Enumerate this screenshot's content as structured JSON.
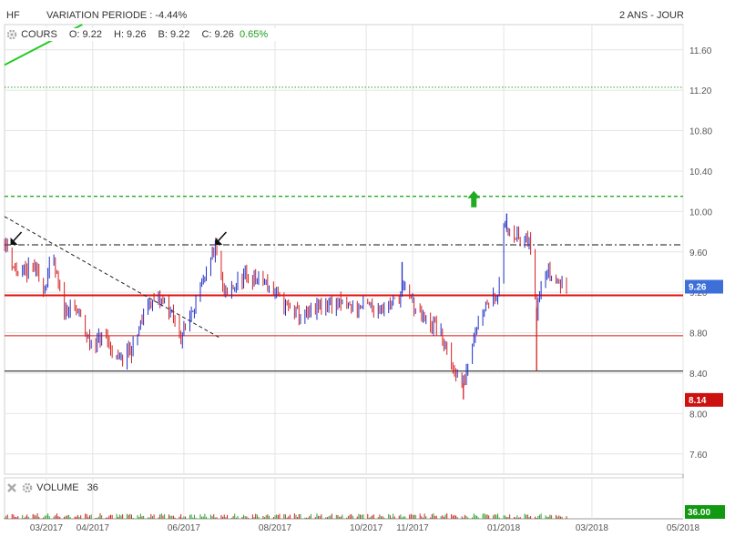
{
  "header": {
    "symbol": "HF",
    "variation": "VARIATION PERIODE : -4.44%",
    "period": "2 ANS - JOUR"
  },
  "price_panel": {
    "label": "COURS",
    "open": "O: 9.22",
    "high": "H: 9.26",
    "low": "B: 9.22",
    "close": "C: 9.26",
    "change": "0.65%",
    "last_badge": "9.26",
    "low_badge": "8.14"
  },
  "volume_panel": {
    "label": "VOLUME",
    "value": "36",
    "badge": "36.00"
  },
  "colors": {
    "up": "#1f2fc8",
    "down": "#d42020",
    "support_red": "#e01010",
    "dashed_green": "#22aa22",
    "grid": "#e4e4e4",
    "badge_blue": "#3e6fd8",
    "badge_red": "#cc1111",
    "badge_green": "#119911"
  },
  "chart_data": {
    "type": "ohlc",
    "x_ticks": [
      "03/2017",
      "04/2017",
      "06/2017",
      "08/2017",
      "10/2017",
      "11/2017",
      "01/2018",
      "03/2018",
      "05/2018"
    ],
    "y_ticks": [
      11.6,
      11.2,
      10.8,
      10.4,
      10.0,
      9.6,
      9.2,
      8.8,
      8.4,
      8.0,
      7.6
    ],
    "ylim": [
      7.4,
      11.85
    ],
    "date_range": [
      "2017-02-01",
      "2018-05-01"
    ],
    "last_price": 9.26,
    "period_low": 8.14,
    "horizontal_lines": [
      {
        "y": 11.23,
        "style": "dotted",
        "color": "green"
      },
      {
        "y": 10.15,
        "style": "dashed",
        "color": "green"
      },
      {
        "y": 9.67,
        "style": "dashdot",
        "color": "black"
      },
      {
        "y": 9.17,
        "style": "solid-thick",
        "color": "red"
      },
      {
        "y": 8.77,
        "style": "solid",
        "color": "red"
      },
      {
        "y": 8.42,
        "style": "solid",
        "color": "black"
      }
    ],
    "trendlines": [
      {
        "from": [
          "2017-02-01",
          9.95
        ],
        "to": [
          "2017-06-25",
          8.75
        ],
        "style": "dashed",
        "color": "black"
      },
      {
        "from": [
          "2017-02-01",
          11.45
        ],
        "to": [
          "2017-03-25",
          11.85
        ],
        "style": "solid",
        "color": "green"
      }
    ],
    "arrows": [
      {
        "date": "2017-02-05",
        "value": 9.67,
        "direction": "down-left",
        "color": "black"
      },
      {
        "date": "2017-06-22",
        "value": 9.67,
        "direction": "down-left",
        "color": "black"
      },
      {
        "date": "2017-12-12",
        "value": 10.15,
        "direction": "up",
        "color": "green"
      }
    ],
    "anchors": [
      [
        "2017-02-01",
        9.7
      ],
      [
        "2017-02-10",
        9.35
      ],
      [
        "2017-02-20",
        9.45
      ],
      [
        "2017-02-28",
        9.25
      ],
      [
        "2017-03-05",
        9.55
      ],
      [
        "2017-03-12",
        9.05
      ],
      [
        "2017-03-22",
        9.0
      ],
      [
        "2017-03-30",
        8.7
      ],
      [
        "2017-04-10",
        8.75
      ],
      [
        "2017-04-18",
        8.5
      ],
      [
        "2017-04-28",
        8.65
      ],
      [
        "2017-05-08",
        9.1
      ],
      [
        "2017-05-20",
        9.1
      ],
      [
        "2017-05-30",
        8.75
      ],
      [
        "2017-06-08",
        9.1
      ],
      [
        "2017-06-15",
        9.3
      ],
      [
        "2017-06-22",
        9.65
      ],
      [
        "2017-06-28",
        9.15
      ],
      [
        "2017-07-10",
        9.35
      ],
      [
        "2017-07-25",
        9.3
      ],
      [
        "2017-08-05",
        9.1
      ],
      [
        "2017-08-20",
        8.95
      ],
      [
        "2017-09-05",
        9.1
      ],
      [
        "2017-09-20",
        9.05
      ],
      [
        "2017-10-05",
        9.05
      ],
      [
        "2017-10-20",
        9.1
      ],
      [
        "2017-10-28",
        9.25
      ],
      [
        "2017-11-05",
        8.95
      ],
      [
        "2017-11-18",
        8.85
      ],
      [
        "2017-11-25",
        8.55
      ],
      [
        "2017-12-02",
        8.35
      ],
      [
        "2017-12-05",
        8.3
      ],
      [
        "2017-12-12",
        8.8
      ],
      [
        "2017-12-20",
        9.1
      ],
      [
        "2017-12-28",
        9.2
      ],
      [
        "2018-01-01",
        9.8
      ],
      [
        "2018-01-05",
        9.85
      ],
      [
        "2018-01-12",
        9.7
      ],
      [
        "2018-01-18",
        9.7
      ],
      [
        "2018-01-23",
        9.05
      ],
      [
        "2018-01-27",
        9.45
      ],
      [
        "2018-02-05",
        9.3
      ],
      [
        "2018-02-12",
        9.26
      ]
    ],
    "spikes": [
      {
        "date": "2017-12-05",
        "low": 8.14
      },
      {
        "date": "2018-01-23",
        "low": 8.42
      },
      {
        "date": "2018-01-03",
        "high": 9.98
      },
      {
        "date": "2017-10-25",
        "high": 9.5
      }
    ]
  }
}
